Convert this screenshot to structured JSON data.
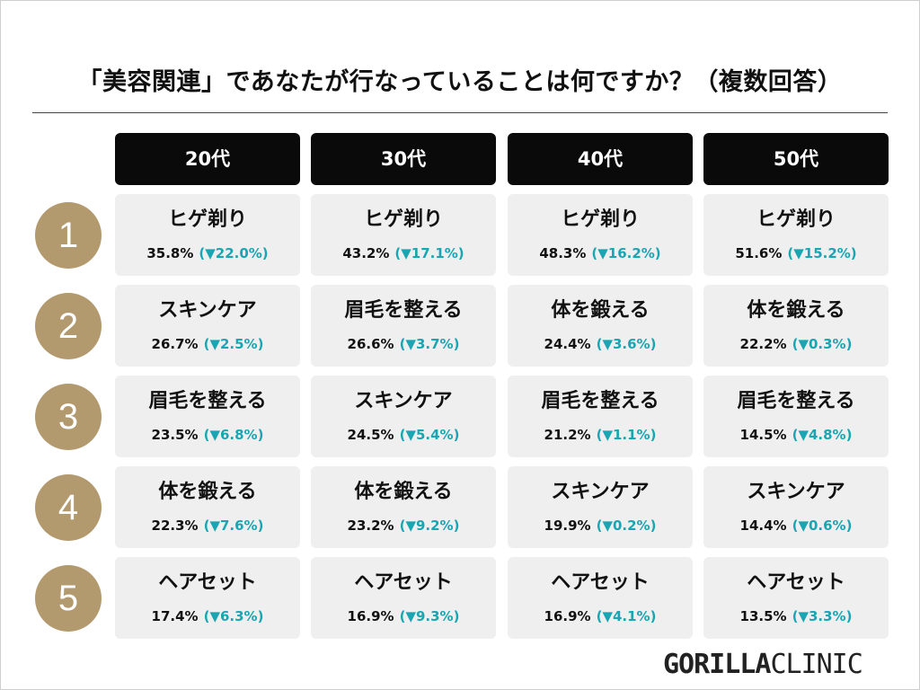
{
  "title": "「美容関連」であなたが行なっていることは何ですか？（複数回答）",
  "columns": [
    "20代",
    "30代",
    "40代",
    "50代"
  ],
  "ranks": [
    "1",
    "2",
    "3",
    "4",
    "5"
  ],
  "cells": [
    [
      {
        "name": "ヒゲ剃り",
        "pct": "35.8%",
        "chg": "(▼22.0%)"
      },
      {
        "name": "ヒゲ剃り",
        "pct": "43.2%",
        "chg": "(▼17.1%)"
      },
      {
        "name": "ヒゲ剃り",
        "pct": "48.3%",
        "chg": "(▼16.2%)"
      },
      {
        "name": "ヒゲ剃り",
        "pct": "51.6%",
        "chg": "(▼15.2%)"
      }
    ],
    [
      {
        "name": "スキンケア",
        "pct": "26.7%",
        "chg": "(▼2.5%)"
      },
      {
        "name": "眉毛を整える",
        "pct": "26.6%",
        "chg": "(▼3.7%)"
      },
      {
        "name": "体を鍛える",
        "pct": "24.4%",
        "chg": "(▼3.6%)"
      },
      {
        "name": "体を鍛える",
        "pct": "22.2%",
        "chg": "(▼0.3%)"
      }
    ],
    [
      {
        "name": "眉毛を整える",
        "pct": "23.5%",
        "chg": "(▼6.8%)"
      },
      {
        "name": "スキンケア",
        "pct": "24.5%",
        "chg": "(▼5.4%)"
      },
      {
        "name": "眉毛を整える",
        "pct": "21.2%",
        "chg": "(▼1.1%)"
      },
      {
        "name": "眉毛を整える",
        "pct": "14.5%",
        "chg": "(▼4.8%)"
      }
    ],
    [
      {
        "name": "体を鍛える",
        "pct": "22.3%",
        "chg": "(▼7.6%)"
      },
      {
        "name": "体を鍛える",
        "pct": "23.2%",
        "chg": "(▼9.2%)"
      },
      {
        "name": "スキンケア",
        "pct": "19.9%",
        "chg": "(▼0.2%)"
      },
      {
        "name": "スキンケア",
        "pct": "14.4%",
        "chg": "(▼0.6%)"
      }
    ],
    [
      {
        "name": "ヘアセット",
        "pct": "17.4%",
        "chg": "(▼6.3%)"
      },
      {
        "name": "ヘアセット",
        "pct": "16.9%",
        "chg": "(▼9.3%)"
      },
      {
        "name": "ヘアセット",
        "pct": "16.9%",
        "chg": "(▼4.1%)"
      },
      {
        "name": "ヘアセット",
        "pct": "13.5%",
        "chg": "(▼3.3%)"
      }
    ]
  ],
  "logo": {
    "part1": "GORILLA",
    "part2": "CLINIC"
  },
  "colors": {
    "header_bg": "#0a0a0a",
    "rank_circle": "#b39a6e",
    "cell_bg": "#efefef",
    "change_text": "#1aa5b3"
  }
}
